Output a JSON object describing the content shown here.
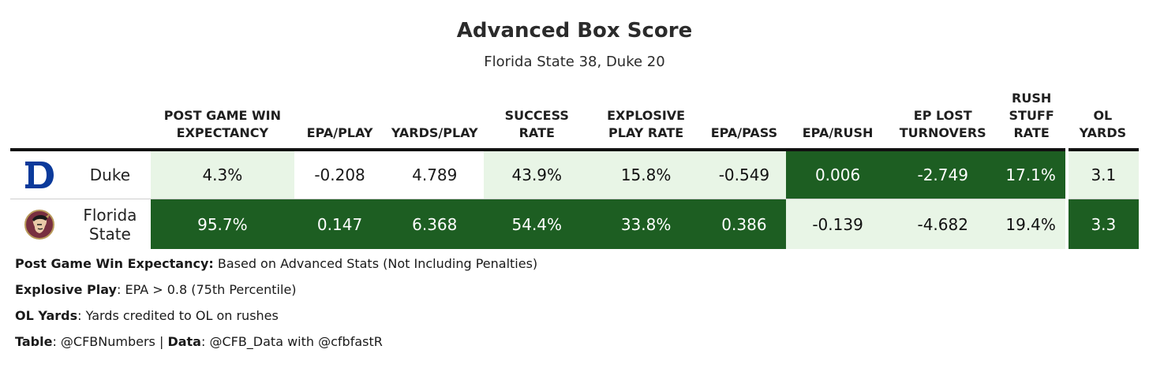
{
  "title": "Advanced Box Score",
  "subtitle": "Florida State 38, Duke 20",
  "columns": [
    "POST GAME WIN EXPECTANCY",
    "EPA/PLAY",
    "YARDS/PLAY",
    "SUCCESS RATE",
    "EXPLOSIVE PLAY RATE",
    "EPA/PASS",
    "EPA/RUSH",
    "EP LOST TURNOVERS",
    "RUSH STUFF RATE",
    "OL YARDS"
  ],
  "rows": [
    {
      "team": "Duke",
      "logo": "duke-d-logo-icon",
      "values": [
        "4.3%",
        "-0.208",
        "4.789",
        "43.9%",
        "15.8%",
        "-0.549",
        "0.006",
        "-2.749",
        "17.1%",
        "3.1"
      ]
    },
    {
      "team": "Florida State",
      "logo": "fsu-seminole-logo-icon",
      "values": [
        "95.7%",
        "0.147",
        "6.368",
        "54.4%",
        "33.8%",
        "0.386",
        "-0.139",
        "-4.682",
        "19.4%",
        "3.3"
      ]
    }
  ],
  "notes": {
    "n1_label": "Post Game Win Expectancy:",
    "n1_text": " Based on Advanced Stats (Not Including Penalties)",
    "n2_label": "Explosive Play",
    "n2_text": ": EPA > 0.8 (75th Percentile)",
    "n3_label": "OL Yards",
    "n3_text": ": Yards credited to OL on rushes",
    "n4_label1": "Table",
    "n4_text1": ": @CFBNumbers | ",
    "n4_label2": "Data",
    "n4_text2": ": @CFB_Data with @cfbfastR"
  },
  "colors": {
    "dark_green": "#1d5e22",
    "light_green": "#e8f5e6",
    "duke_blue": "#0b3a9b",
    "fsu_garnet": "#782f40"
  }
}
